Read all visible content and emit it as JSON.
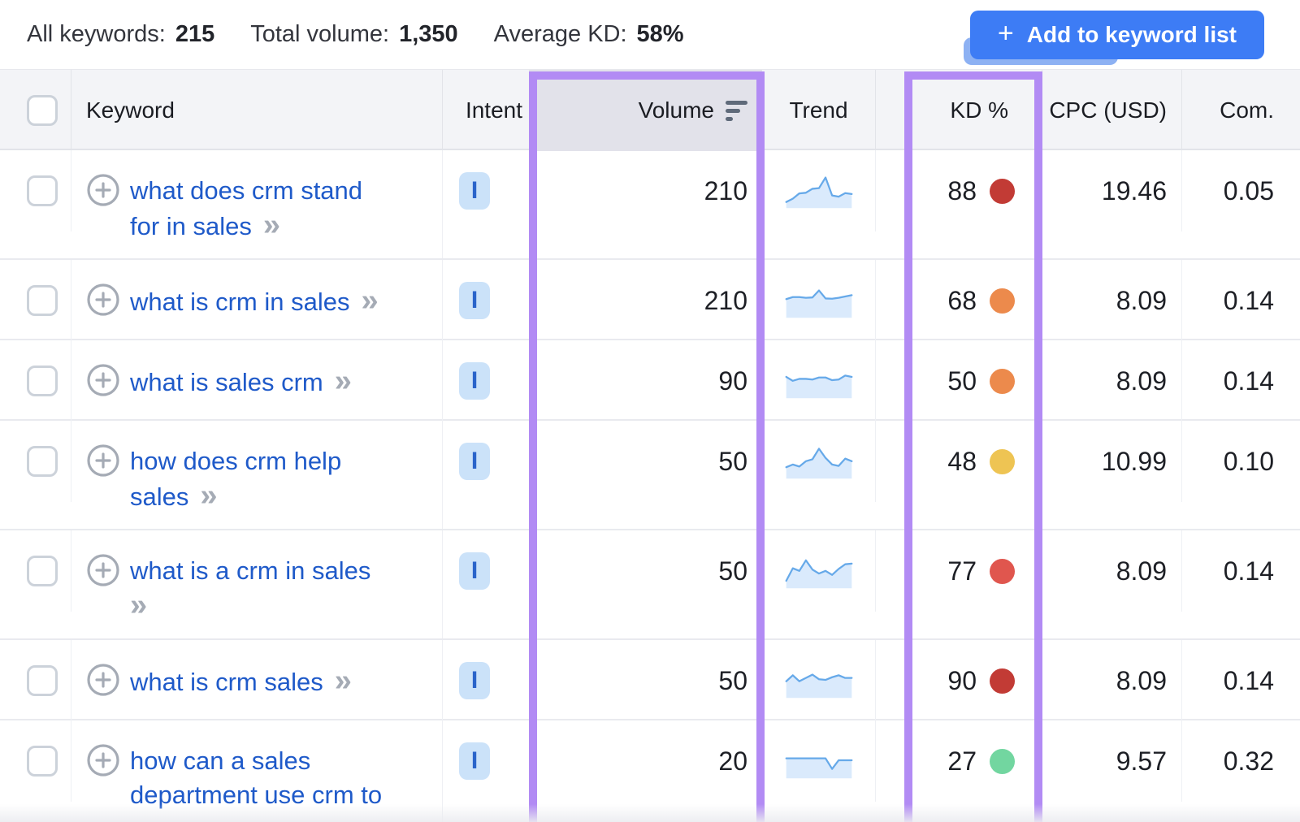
{
  "topbar": {
    "stats": [
      {
        "label": "All keywords:",
        "value": "215"
      },
      {
        "label": "Total volume:",
        "value": "1,350"
      },
      {
        "label": "Average KD:",
        "value": "58%"
      }
    ],
    "add_button": {
      "plus": "+",
      "label": "Add to keyword list",
      "color": "#3d7cf5"
    }
  },
  "table": {
    "headers": {
      "keyword": "Keyword",
      "intent": "Intent",
      "volume": "Volume",
      "trend": "Trend",
      "kd": "KD %",
      "cpc": "CPC (USD)",
      "com": "Com."
    },
    "sorted_column": "volume",
    "highlight_color": "#b28bf4",
    "sparkline_colors": {
      "stroke": "#66a9e9",
      "fill": "#daeafc"
    },
    "rows": [
      {
        "keyword_lines": [
          "what does crm stand",
          "for in sales"
        ],
        "chevron": true,
        "intent": "I",
        "volume": "210",
        "trend": [
          1.2,
          2.2,
          3.8,
          4.0,
          5.2,
          5.4,
          8.6,
          3.2,
          2.8,
          3.9,
          3.6
        ],
        "kd": "88",
        "kd_color": "#c23b35",
        "cpc": "19.46",
        "com": "0.05"
      },
      {
        "keyword_lines": [
          "what is crm in sales"
        ],
        "chevron": true,
        "intent": "I",
        "volume": "210",
        "trend": [
          5.0,
          5.6,
          5.6,
          5.4,
          5.5,
          7.6,
          5.2,
          5.1,
          5.4,
          5.8,
          6.2
        ],
        "kd": "68",
        "kd_color": "#ec8a4c",
        "cpc": "8.09",
        "com": "0.14"
      },
      {
        "keyword_lines": [
          "what is sales crm"
        ],
        "chevron": true,
        "intent": "I",
        "volume": "90",
        "trend": [
          5.8,
          4.6,
          5.2,
          5.2,
          5.0,
          5.6,
          5.6,
          4.8,
          5.0,
          6.2,
          5.8
        ],
        "kd": "50",
        "kd_color": "#ec8a4c",
        "cpc": "8.09",
        "com": "0.14"
      },
      {
        "keyword_lines": [
          "how does crm help",
          "sales"
        ],
        "chevron": true,
        "intent": "I",
        "volume": "50",
        "trend": [
          2.8,
          3.6,
          3.0,
          4.6,
          5.2,
          8.4,
          5.6,
          3.6,
          3.2,
          5.4,
          4.6
        ],
        "kd": "48",
        "kd_color": "#eec453",
        "cpc": "10.99",
        "com": "0.10"
      },
      {
        "keyword_lines": [
          "what is a crm in sales",
          ""
        ],
        "chevron": true,
        "intent": "I",
        "volume": "50",
        "trend": [
          1.6,
          5.4,
          4.6,
          7.8,
          5.0,
          3.8,
          4.6,
          3.4,
          5.2,
          6.6,
          6.8
        ],
        "kd": "77",
        "kd_color": "#e0564e",
        "cpc": "8.09",
        "com": "0.14"
      },
      {
        "keyword_lines": [
          "what is crm sales"
        ],
        "chevron": true,
        "intent": "I",
        "volume": "50",
        "trend": [
          4.4,
          6.2,
          4.4,
          5.4,
          6.4,
          5.0,
          4.8,
          5.6,
          6.2,
          5.4,
          5.4
        ],
        "kd": "90",
        "kd_color": "#c23b35",
        "cpc": "8.09",
        "com": "0.14"
      },
      {
        "keyword_lines": [
          "how can a sales",
          "department use crm to"
        ],
        "chevron": false,
        "intent": "I",
        "volume": "20",
        "trend": [
          5.4,
          5.4,
          5.4,
          5.4,
          5.4,
          5.4,
          5.4,
          2.2,
          4.8,
          4.8,
          4.8
        ],
        "kd": "27",
        "kd_color": "#72d6a0",
        "cpc": "9.57",
        "com": "0.32"
      }
    ]
  }
}
